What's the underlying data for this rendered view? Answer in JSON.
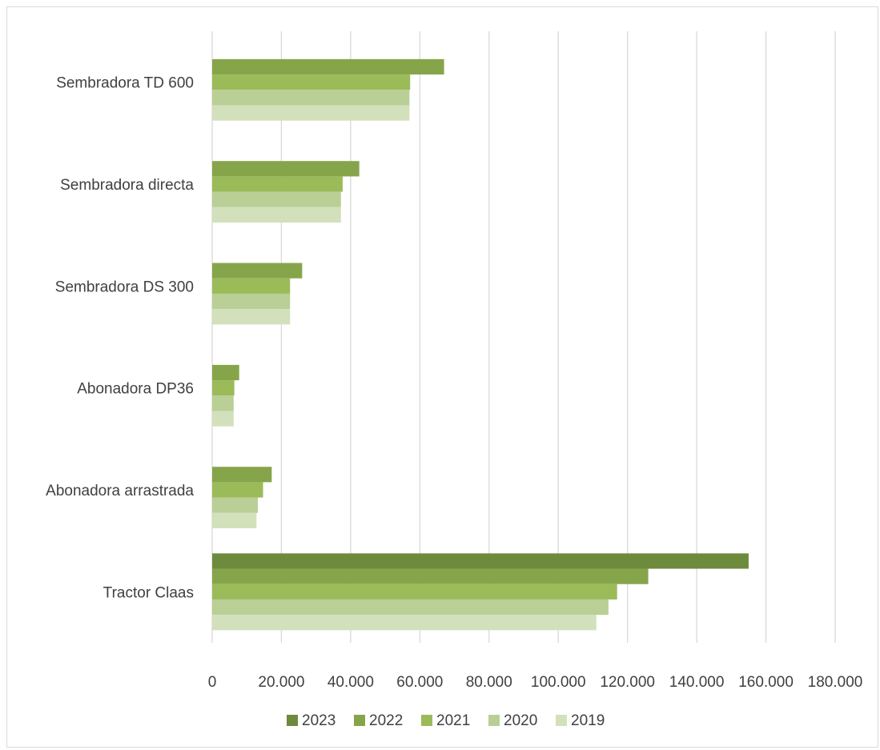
{
  "chart_data": {
    "type": "bar",
    "orientation": "horizontal",
    "categories": [
      "Sembradora TD 600",
      "Sembradora directa",
      "Sembradora DS 300",
      "Abonadora DP36",
      "Abonadora arrastrada",
      "Tractor Claas"
    ],
    "series": [
      {
        "name": "2023",
        "color": "#6e8b3d",
        "values": [
          null,
          null,
          null,
          null,
          null,
          155000
        ]
      },
      {
        "name": "2022",
        "color": "#86a54b",
        "values": [
          67000,
          42500,
          26000,
          7800,
          17200,
          126000
        ]
      },
      {
        "name": "2021",
        "color": "#9bbb59",
        "values": [
          57200,
          37700,
          22500,
          6400,
          14700,
          117000
        ]
      },
      {
        "name": "2020",
        "color": "#b9cf96",
        "values": [
          57000,
          37200,
          22500,
          6200,
          13200,
          114500
        ]
      },
      {
        "name": "2019",
        "color": "#d2e0bc",
        "values": [
          57000,
          37200,
          22500,
          6200,
          12800,
          111000
        ]
      }
    ],
    "xlim": [
      0,
      180000
    ],
    "x_ticks": [
      "0",
      "20.000",
      "40.000",
      "60.000",
      "80.000",
      "100.000",
      "120.000",
      "140.000",
      "160.000",
      "180.000"
    ],
    "grid": true,
    "legend_position": "bottom"
  }
}
